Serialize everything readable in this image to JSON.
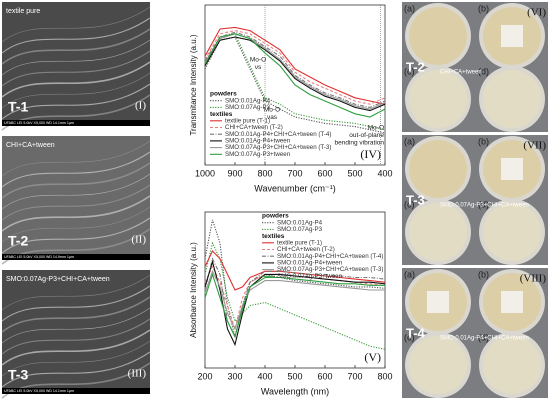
{
  "sem_panels": [
    {
      "caption": "textile pure",
      "sample": "T-1",
      "roman": "(I)",
      "footer": "UFABC   LEI   5.0kV   X5,000   WD 14.1mm   1μm"
    },
    {
      "caption": "CHI+CA+tween",
      "sample": "T-2",
      "roman": "(II)",
      "footer": "UFABC   LEI   5.0kV   X5,000   WD 14.9mm   1μm"
    },
    {
      "caption": "SMO:0.07Ag-P3+CHI+CA+tween",
      "sample": "T-3",
      "roman": "(III)",
      "footer": "UFABC   LEI   5.0kV   X5,000   WD 14.1mm   1μm"
    }
  ],
  "petri_panels": [
    {
      "letters": [
        "(a)",
        "(b)",
        "(c)",
        "(d)"
      ],
      "roman": "(VI)",
      "sample": "T-2",
      "caption": "CHI+CA+tween"
    },
    {
      "letters": [
        "(a)",
        "(b)",
        "(c)",
        "(d)"
      ],
      "roman": "(VII)",
      "sample": "T-3",
      "caption": "SMO:0.07Ag-P3+CHI+CA+tween"
    },
    {
      "letters": [
        "(a)",
        "(b)",
        "(c)",
        "(d)"
      ],
      "roman": "(VIII)",
      "sample": "T-4",
      "caption": "SMO:0.01Ag-P4+CHI+CA+tween"
    }
  ],
  "chart_data": [
    {
      "type": "line",
      "panel_label": "(IV)",
      "x_label": "Wavenumber (cm⁻¹)",
      "y_label": "Transmitance Intensity (a.u.)",
      "x": [
        1000,
        950,
        900,
        850,
        800,
        750,
        700,
        650,
        600,
        550,
        500,
        450,
        400
      ],
      "xlim": [
        1000,
        400
      ],
      "xticks": [
        1000,
        900,
        800,
        700,
        600,
        500,
        400
      ],
      "ylim": [
        0,
        100
      ],
      "vlines": [
        800,
        415
      ],
      "legend_groups": [
        "powders",
        "textiles"
      ],
      "annotations": [
        [
          "Mo-O",
          "νs"
        ],
        [
          "Mo-O",
          "νas"
        ],
        [
          "Mo-O",
          "out-of-plane",
          "bending vibration"
        ]
      ],
      "series": [
        {
          "name": "SMO:0.01Ag-P4",
          "group": 0,
          "color": "#555555",
          "style": "dotted",
          "values": [
            60,
            78,
            80,
            60,
            40,
            35,
            30,
            28,
            26,
            25,
            24,
            22,
            20
          ]
        },
        {
          "name": "SMO:0.07Ag-P3",
          "group": 0,
          "color": "#3a9a3a",
          "style": "dotted",
          "values": [
            62,
            80,
            82,
            62,
            42,
            38,
            32,
            30,
            28,
            27,
            26,
            24,
            22
          ]
        },
        {
          "name": "textile pure (T-1)",
          "group": 1,
          "color": "#e03030",
          "style": "solid",
          "values": [
            68,
            85,
            86,
            84,
            78,
            72,
            60,
            55,
            50,
            46,
            42,
            40,
            38
          ]
        },
        {
          "name": "CHI+CA+tween (T-2)",
          "group": 1,
          "color": "#e88080",
          "style": "dashed",
          "values": [
            66,
            82,
            84,
            82,
            76,
            70,
            58,
            52,
            48,
            44,
            40,
            38,
            42
          ]
        },
        {
          "name": "SMO:0.01Ag-P4+CHI+CA+tween (T-4)",
          "group": 1,
          "color": "#777777",
          "style": "dashdot",
          "values": [
            65,
            80,
            83,
            80,
            74,
            68,
            56,
            50,
            45,
            42,
            38,
            36,
            40
          ]
        },
        {
          "name": "SMO:0.01Ag-P4+tween",
          "group": 1,
          "color": "#111111",
          "style": "solid",
          "values": [
            62,
            78,
            80,
            78,
            72,
            65,
            54,
            48,
            43,
            40,
            36,
            34,
            38
          ]
        },
        {
          "name": "SMO:0.07Ag-P3+CHI+CA+tween (T-3)",
          "group": 1,
          "color": "#999999",
          "style": "solid",
          "values": [
            64,
            79,
            82,
            79,
            73,
            66,
            55,
            49,
            44,
            41,
            37,
            35,
            39
          ]
        },
        {
          "name": "SMO:0.07Ag-P3+tween",
          "group": 1,
          "color": "#2e9e3e",
          "style": "solid",
          "values": [
            63,
            80,
            82,
            79,
            70,
            62,
            50,
            44,
            40,
            36,
            32,
            30,
            35
          ]
        }
      ]
    },
    {
      "type": "line",
      "panel_label": "(V)",
      "x_label": "Wavelength (nm)",
      "y_label": "Absorbance Intensity (a.u.)",
      "x": [
        200,
        225,
        250,
        275,
        300,
        325,
        350,
        400,
        450,
        500,
        550,
        600,
        650,
        700,
        750,
        800
      ],
      "xlim": [
        200,
        800
      ],
      "xticks": [
        200,
        300,
        400,
        500,
        600,
        700,
        800
      ],
      "ylim": [
        0,
        100
      ],
      "legend_groups": [
        "powders",
        "textiles"
      ],
      "series": [
        {
          "name": "SMO:0.01Ag-P4",
          "group": 0,
          "color": "#555555",
          "style": "dotted",
          "values": [
            70,
            95,
            80,
            40,
            20,
            40,
            55,
            60,
            58,
            56,
            55,
            54,
            53,
            52,
            52,
            51
          ]
        },
        {
          "name": "SMO:0.07Ag-P3",
          "group": 0,
          "color": "#3a9a3a",
          "style": "dotted",
          "values": [
            60,
            80,
            70,
            45,
            30,
            35,
            40,
            42,
            38,
            34,
            30,
            26,
            22,
            18,
            14,
            12
          ]
        },
        {
          "name": "textile pure (T-1)",
          "group": 1,
          "color": "#e03030",
          "style": "solid",
          "values": [
            65,
            75,
            70,
            60,
            50,
            52,
            58,
            62,
            62,
            61,
            60,
            59,
            58,
            57,
            56,
            55
          ]
        },
        {
          "name": "CHI+CA+tween (T-2)",
          "group": 1,
          "color": "#e88080",
          "style": "dashed",
          "values": [
            55,
            65,
            55,
            40,
            25,
            45,
            55,
            60,
            60,
            59,
            58,
            57,
            56,
            55,
            54,
            53
          ]
        },
        {
          "name": "SMO:0.01Ag-P4+CHI+CA+tween (T-4)",
          "group": 1,
          "color": "#777777",
          "style": "dashdot",
          "values": [
            50,
            70,
            60,
            30,
            20,
            40,
            55,
            62,
            62,
            61,
            60,
            60,
            59,
            58,
            58,
            57
          ]
        },
        {
          "name": "SMO:0.01Ag-P4+tween",
          "group": 1,
          "color": "#111111",
          "style": "solid",
          "values": [
            52,
            68,
            50,
            25,
            15,
            35,
            52,
            60,
            60,
            59,
            58,
            57,
            56,
            55,
            55,
            54
          ]
        },
        {
          "name": "SMO:0.07Ag-P3+CHI+CA+tween (T-3)",
          "group": 1,
          "color": "#999999",
          "style": "solid",
          "values": [
            48,
            62,
            52,
            35,
            25,
            40,
            50,
            56,
            56,
            55,
            54,
            53,
            52,
            51,
            50,
            50
          ]
        },
        {
          "name": "SMO:0.07Ag-P3+tween",
          "group": 1,
          "color": "#2e9e3e",
          "style": "solid",
          "values": [
            45,
            60,
            45,
            30,
            20,
            38,
            52,
            58,
            58,
            57,
            56,
            55,
            54,
            54,
            53,
            53
          ]
        }
      ]
    }
  ]
}
